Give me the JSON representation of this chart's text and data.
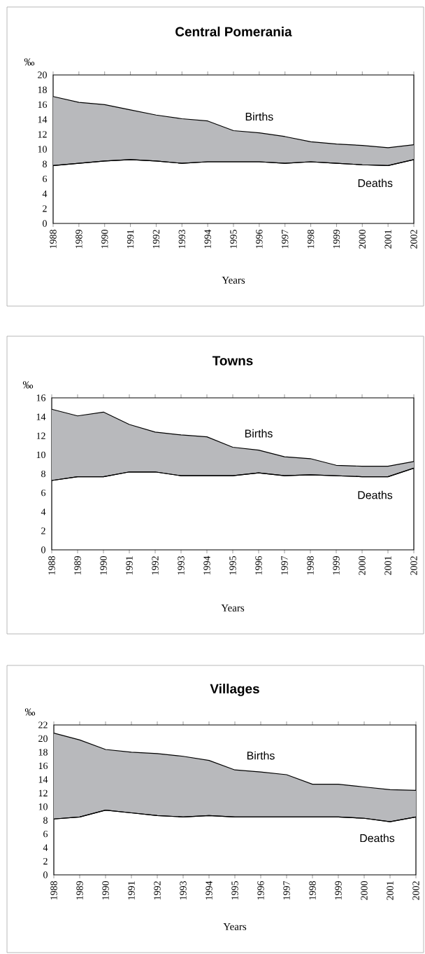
{
  "chart_data": [
    {
      "type": "area",
      "title": "Central Pomerania",
      "xlabel": "Years",
      "ylabel": "‰",
      "categories": [
        "1988",
        "1989",
        "1990",
        "1991",
        "1992",
        "1993",
        "1994",
        "1995",
        "1996",
        "1997",
        "1998",
        "1999",
        "2000",
        "2001",
        "2002"
      ],
      "ylim": [
        0,
        20
      ],
      "yticks": [
        0,
        2,
        4,
        6,
        8,
        10,
        12,
        14,
        16,
        18,
        20
      ],
      "series": [
        {
          "name": "Births",
          "color": "#b8b9bc",
          "values": [
            17.1,
            16.3,
            16.0,
            15.3,
            14.6,
            14.1,
            13.8,
            12.5,
            12.2,
            11.7,
            11.0,
            10.7,
            10.5,
            10.2,
            10.6
          ]
        },
        {
          "name": "Deaths",
          "type": "line",
          "color": "#000000",
          "values": [
            7.8,
            8.1,
            8.4,
            8.6,
            8.4,
            8.1,
            8.3,
            8.3,
            8.3,
            8.1,
            8.3,
            8.1,
            7.9,
            7.8,
            8.6
          ]
        }
      ]
    },
    {
      "type": "area",
      "title": "Towns",
      "xlabel": "Years",
      "ylabel": "‰",
      "categories": [
        "1988",
        "1989",
        "1990",
        "1991",
        "1992",
        "1993",
        "1994",
        "1995",
        "1996",
        "1997",
        "1998",
        "1999",
        "2000",
        "2001",
        "2002"
      ],
      "ylim": [
        0,
        16
      ],
      "yticks": [
        0,
        2,
        4,
        6,
        8,
        10,
        12,
        14,
        16
      ],
      "series": [
        {
          "name": "Births",
          "color": "#b8b9bc",
          "values": [
            14.8,
            14.1,
            14.5,
            13.2,
            12.4,
            12.1,
            11.9,
            10.8,
            10.5,
            9.8,
            9.6,
            8.9,
            8.8,
            8.8,
            9.3
          ]
        },
        {
          "name": "Deaths",
          "type": "line",
          "color": "#000000",
          "values": [
            7.3,
            7.7,
            7.7,
            8.2,
            8.2,
            7.8,
            7.8,
            7.8,
            8.1,
            7.8,
            7.9,
            7.8,
            7.7,
            7.7,
            8.6
          ]
        }
      ]
    },
    {
      "type": "area",
      "title": "Villages",
      "xlabel": "Years",
      "ylabel": "‰",
      "categories": [
        "1988",
        "1989",
        "1990",
        "1991",
        "1992",
        "1993",
        "1994",
        "1995",
        "1996",
        "1997",
        "1998",
        "1999",
        "2000",
        "2001",
        "2002"
      ],
      "ylim": [
        0,
        22
      ],
      "yticks": [
        0,
        2,
        4,
        6,
        8,
        10,
        12,
        14,
        16,
        18,
        20,
        22
      ],
      "series": [
        {
          "name": "Births",
          "color": "#b8b9bc",
          "values": [
            20.8,
            19.8,
            18.4,
            18.0,
            17.8,
            17.4,
            16.8,
            15.4,
            15.1,
            14.7,
            13.3,
            13.3,
            12.9,
            12.5,
            12.4
          ]
        },
        {
          "name": "Deaths",
          "type": "line",
          "color": "#000000",
          "values": [
            8.2,
            8.5,
            9.5,
            9.1,
            8.7,
            8.5,
            8.7,
            8.5,
            8.5,
            8.5,
            8.5,
            8.5,
            8.3,
            7.8,
            8.5
          ]
        }
      ]
    }
  ]
}
